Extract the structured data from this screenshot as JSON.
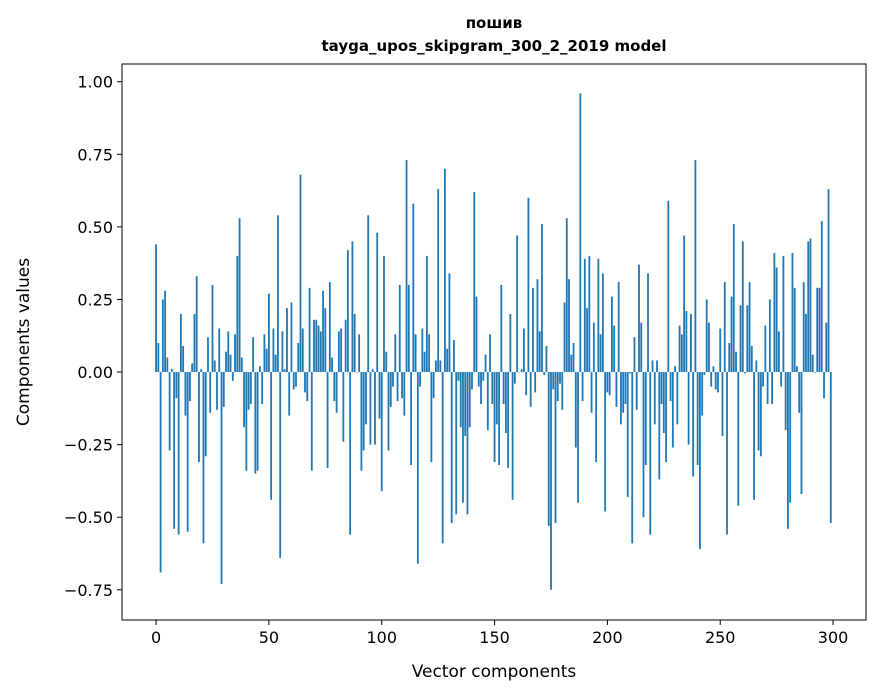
{
  "chart_data": {
    "type": "bar",
    "title_line1": "пошив",
    "title_line2": "tayga_upos_skipgram_300_2_2019 model",
    "xlabel": "Vector components",
    "ylabel": "Components values",
    "xlim": [
      -15.1,
      314.6
    ],
    "ylim": [
      -0.854,
      1.061
    ],
    "xticks": [
      0,
      50,
      100,
      150,
      200,
      250,
      300
    ],
    "xtick_labels": [
      "0",
      "50",
      "100",
      "150",
      "200",
      "250",
      "300"
    ],
    "yticks": [
      1.0,
      0.75,
      0.5,
      0.25,
      0.0,
      -0.25,
      -0.5,
      -0.75
    ],
    "ytick_labels": [
      "1.00",
      "0.75",
      "0.50",
      "0.25",
      "0.00",
      "−0.25",
      "−0.50",
      "−0.75"
    ],
    "grid": false,
    "bar_color": "#1f77b4",
    "values": [
      0.44,
      0.1,
      -0.69,
      0.25,
      0.28,
      0.05,
      -0.27,
      0.01,
      -0.54,
      -0.09,
      -0.56,
      0.2,
      0.09,
      -0.15,
      -0.55,
      -0.1,
      0.03,
      0.2,
      0.33,
      -0.31,
      0.01,
      -0.59,
      -0.29,
      0.12,
      -0.14,
      0.3,
      0.04,
      -0.13,
      0.15,
      -0.73,
      -0.12,
      0.07,
      0.14,
      0.06,
      -0.03,
      0.13,
      0.4,
      0.53,
      0.05,
      -0.19,
      -0.34,
      -0.13,
      -0.11,
      0.12,
      -0.35,
      -0.34,
      0.02,
      -0.11,
      0.13,
      0.08,
      0.27,
      -0.44,
      0.15,
      0.06,
      0.54,
      -0.64,
      0.14,
      0.01,
      0.22,
      -0.15,
      0.24,
      -0.06,
      -0.05,
      0.1,
      0.68,
      0.15,
      -0.07,
      -0.1,
      0.29,
      -0.34,
      0.18,
      0.18,
      0.16,
      0.14,
      0.28,
      0.22,
      -0.33,
      0.31,
      0.05,
      -0.1,
      -0.14,
      0.14,
      0.15,
      -0.24,
      0.18,
      0.42,
      -0.56,
      0.45,
      0.2,
      0.0,
      0.13,
      -0.34,
      -0.27,
      -0.18,
      0.54,
      -0.25,
      0.01,
      -0.25,
      0.48,
      -0.16,
      -0.41,
      0.4,
      0.07,
      -0.27,
      -0.12,
      -0.05,
      0.13,
      -0.1,
      0.3,
      -0.09,
      -0.15,
      0.73,
      0.3,
      -0.32,
      0.58,
      0.13,
      -0.66,
      -0.05,
      0.15,
      0.07,
      0.4,
      0.13,
      -0.31,
      -0.09,
      0.04,
      0.63,
      0.04,
      -0.59,
      0.7,
      0.08,
      0.34,
      -0.52,
      0.11,
      -0.49,
      -0.03,
      -0.19,
      -0.45,
      -0.22,
      -0.49,
      -0.19,
      -0.06,
      0.62,
      0.26,
      -0.05,
      -0.11,
      -0.03,
      0.06,
      -0.2,
      0.13,
      -0.11,
      -0.31,
      -0.18,
      -0.32,
      0.3,
      -0.11,
      -0.21,
      -0.33,
      0.2,
      -0.44,
      -0.04,
      0.47,
      0.0,
      0.01,
      0.15,
      -0.08,
      0.6,
      -0.12,
      0.29,
      -0.07,
      0.32,
      0.14,
      0.51,
      -0.01,
      0.09,
      -0.53,
      -0.75,
      -0.06,
      -0.52,
      -0.1,
      -0.04,
      -0.13,
      0.24,
      0.53,
      0.32,
      0.06,
      0.1,
      -0.26,
      -0.45,
      0.96,
      -0.1,
      0.39,
      0.22,
      0.4,
      -0.14,
      0.17,
      -0.31,
      0.39,
      0.13,
      0.34,
      -0.48,
      -0.07,
      -0.08,
      0.26,
      0.16,
      -0.12,
      0.31,
      -0.18,
      -0.14,
      -0.11,
      -0.43,
      -0.005,
      -0.59,
      0.12,
      -0.13,
      0.37,
      0.17,
      -0.5,
      -0.32,
      0.34,
      -0.56,
      0.04,
      -0.18,
      0.04,
      -0.37,
      -0.11,
      -0.21,
      -0.31,
      0.59,
      -0.1,
      -0.26,
      0.02,
      -0.18,
      0.16,
      0.13,
      0.47,
      0.21,
      -0.25,
      0.2,
      -0.36,
      0.73,
      -0.32,
      -0.61,
      -0.15,
      -0.01,
      0.25,
      0.17,
      -0.05,
      0.02,
      -0.06,
      -0.07,
      0.15,
      -0.22,
      0.31,
      -0.56,
      0.1,
      0.26,
      0.51,
      0.07,
      -0.46,
      0.23,
      0.45,
      -0.005,
      0.23,
      0.31,
      0.09,
      -0.44,
      0.04,
      -0.27,
      -0.29,
      -0.05,
      0.16,
      -0.11,
      0.25,
      -0.11,
      0.41,
      0.36,
      0.14,
      -0.05,
      0.4,
      -0.2,
      -0.54,
      -0.45,
      0.41,
      0.29,
      0.02,
      -0.14,
      -0.42,
      0.31,
      0.2,
      0.45,
      0.46,
      0.06,
      0.0,
      0.29,
      0.29,
      0.52,
      -0.09,
      0.17,
      0.63,
      -0.52
    ]
  }
}
